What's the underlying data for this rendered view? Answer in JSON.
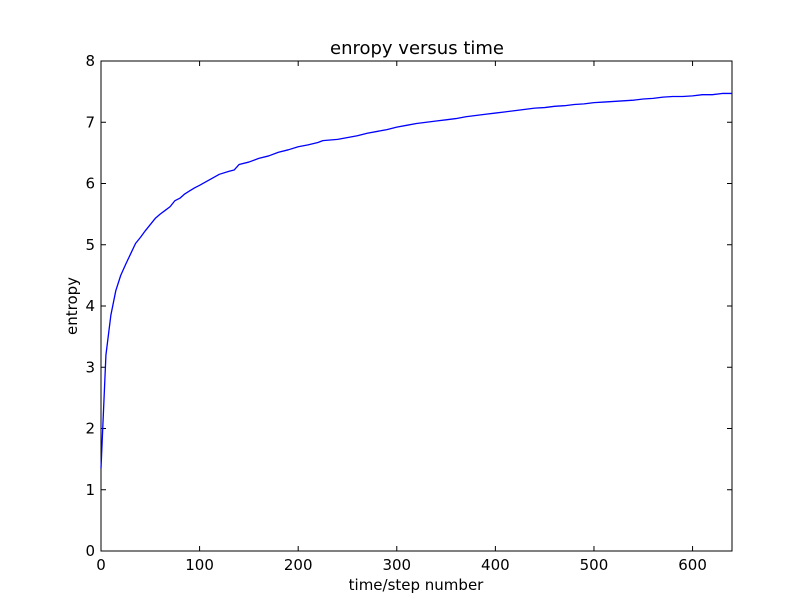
{
  "chart_data": {
    "type": "line",
    "title": "enropy versus time",
    "xlabel": "time/step number",
    "ylabel": "entropy",
    "xlim": [
      0,
      640
    ],
    "ylim": [
      0,
      8
    ],
    "xticks": [
      0,
      100,
      200,
      300,
      400,
      500,
      600
    ],
    "yticks": [
      0,
      1,
      2,
      3,
      4,
      5,
      6,
      7,
      8
    ],
    "grid": false,
    "line_color": "#0000ff",
    "series": [
      {
        "x": [
          0,
          5,
          10,
          15,
          20,
          25,
          30,
          35,
          40,
          45,
          50,
          55,
          60,
          65,
          70,
          75,
          80,
          85,
          90,
          95,
          100,
          110,
          120,
          130,
          135,
          140,
          150,
          160,
          170,
          180,
          190,
          200,
          210,
          220,
          225,
          240,
          260,
          270,
          280,
          290,
          300,
          310,
          320,
          330,
          340,
          350,
          360,
          370,
          380,
          390,
          400,
          410,
          420,
          430,
          440,
          450,
          460,
          470,
          480,
          490,
          500,
          510,
          520,
          530,
          540,
          550,
          560,
          570,
          580,
          590,
          600,
          610,
          620,
          630,
          640
        ],
        "y": [
          1.35,
          3.2,
          3.85,
          4.25,
          4.5,
          4.68,
          4.85,
          5.02,
          5.12,
          5.23,
          5.33,
          5.43,
          5.5,
          5.56,
          5.62,
          5.72,
          5.76,
          5.83,
          5.88,
          5.93,
          5.97,
          6.06,
          6.15,
          6.2,
          6.22,
          6.31,
          6.35,
          6.41,
          6.45,
          6.51,
          6.55,
          6.6,
          6.63,
          6.67,
          6.7,
          6.72,
          6.78,
          6.82,
          6.85,
          6.88,
          6.92,
          6.95,
          6.98,
          7.0,
          7.02,
          7.04,
          7.06,
          7.09,
          7.11,
          7.13,
          7.15,
          7.17,
          7.19,
          7.21,
          7.23,
          7.24,
          7.26,
          7.27,
          7.29,
          7.3,
          7.32,
          7.33,
          7.34,
          7.35,
          7.36,
          7.38,
          7.39,
          7.41,
          7.42,
          7.42,
          7.43,
          7.45,
          7.45,
          7.47,
          7.47
        ]
      }
    ]
  }
}
